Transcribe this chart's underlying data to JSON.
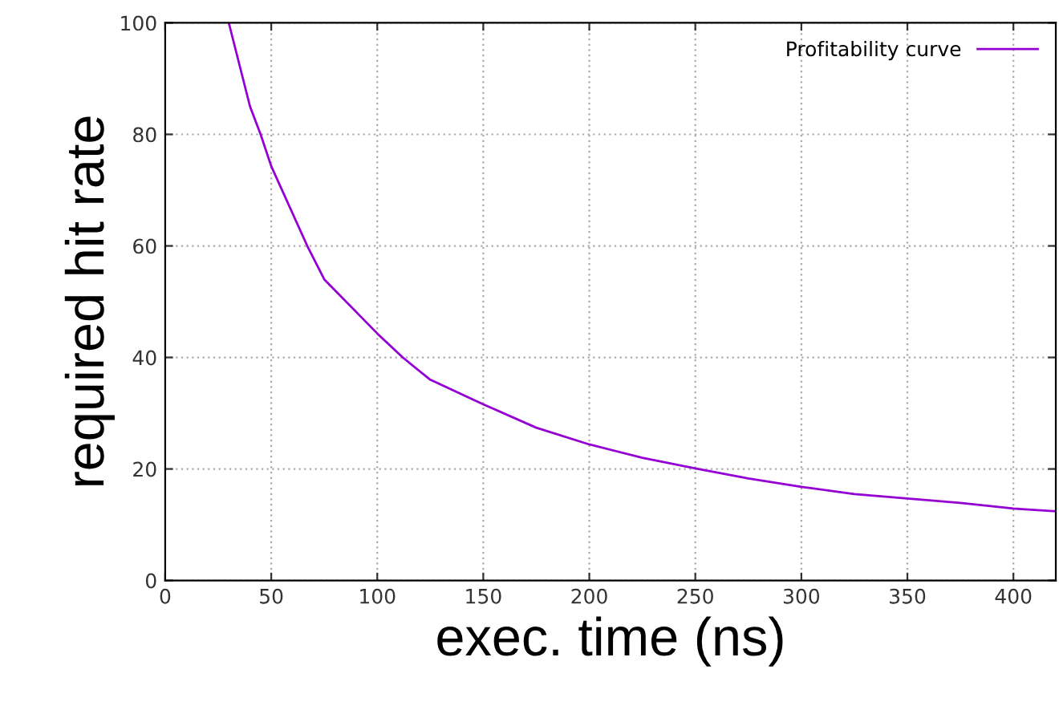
{
  "chart_data": {
    "type": "line",
    "xlabel": "exec. time (ns)",
    "ylabel": "required hit rate",
    "x": [
      30,
      40,
      45,
      50,
      67,
      75,
      100,
      112,
      125,
      150,
      175,
      200,
      225,
      250,
      275,
      300,
      325,
      350,
      375,
      400,
      420
    ],
    "series": [
      {
        "name": "Profitability curve",
        "color": "#9400d3",
        "values": [
          100,
          85,
          80,
          74.3,
          60,
          54,
          44.3,
          40,
          36,
          31.6,
          27.4,
          24.4,
          22,
          20.1,
          18.3,
          16.8,
          15.5,
          14.7,
          13.9,
          12.9,
          12.4
        ]
      }
    ],
    "xlim": [
      0,
      420
    ],
    "ylim": [
      0,
      100
    ],
    "xticks": [
      0,
      50,
      100,
      150,
      200,
      250,
      300,
      350,
      400
    ],
    "yticks": [
      0,
      20,
      40,
      60,
      80,
      100
    ],
    "grid": true,
    "legend": "top right",
    "marker": "none",
    "line_style": "solid"
  }
}
